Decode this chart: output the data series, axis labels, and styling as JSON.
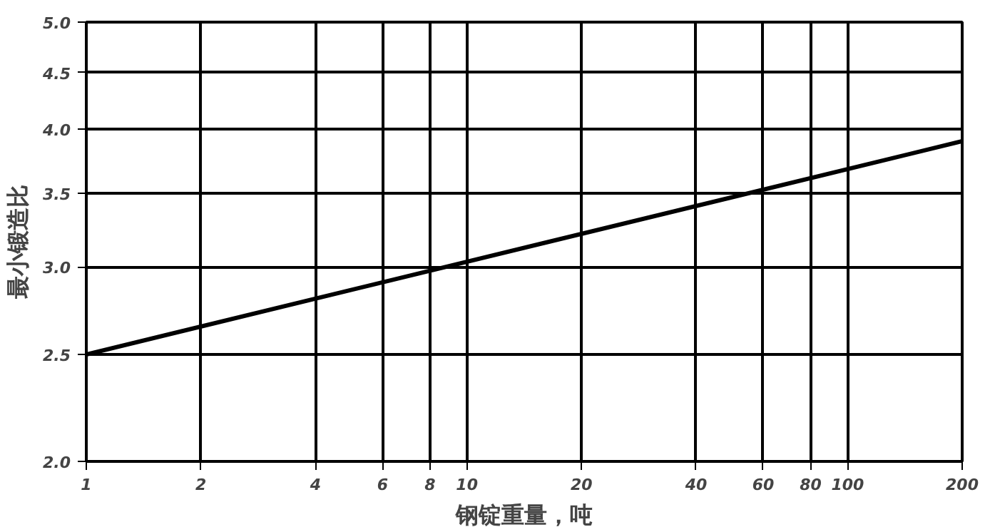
{
  "chart_data": {
    "type": "line",
    "xlabel": "钢锭重量，吨",
    "ylabel": "最小锻造比",
    "log": "xy",
    "grid": true,
    "line_style": "solid",
    "x": [
      1,
      200
    ],
    "series": [
      {
        "color": "#000000",
        "values": [
          2.5,
          3.9
        ]
      }
    ],
    "xlim": [
      1,
      200
    ],
    "ylim": [
      2,
      5
    ],
    "xticks": [
      1,
      2,
      4,
      6,
      8,
      10,
      20,
      40,
      60,
      80,
      100,
      200
    ],
    "yticks": [
      {
        "value": 2,
        "label": "2.0"
      },
      {
        "value": 2.5,
        "label": "2.5"
      },
      {
        "value": 3,
        "label": "3.0"
      },
      {
        "value": 3.5,
        "label": "3.5"
      },
      {
        "value": 4,
        "label": "4.0"
      },
      {
        "value": 4.5,
        "label": "4.5"
      },
      {
        "value": 5,
        "label": "5.0"
      }
    ]
  }
}
